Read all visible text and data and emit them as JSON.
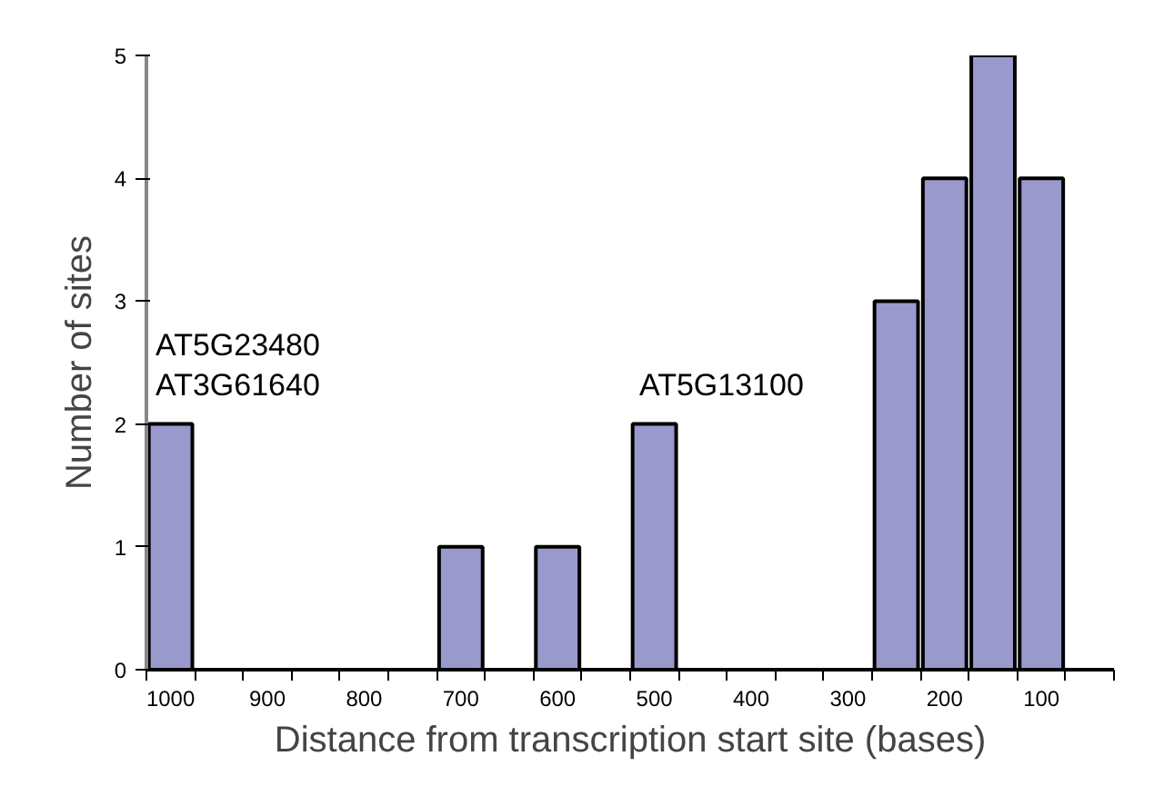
{
  "chart_data": {
    "type": "bar",
    "xlabel": "Distance from transcription start site (bases)",
    "ylabel": "Number of sites",
    "categories": [
      "1000",
      null,
      "900",
      null,
      "800",
      null,
      "700",
      null,
      "600",
      null,
      "500",
      null,
      "400",
      null,
      "300",
      null,
      "200",
      null,
      "100",
      null
    ],
    "values": [
      2,
      0,
      0,
      0,
      0,
      0,
      1,
      0,
      1,
      0,
      2,
      0,
      0,
      0,
      0,
      3,
      4,
      5,
      4,
      0
    ],
    "color": "#9999cc",
    "ylim": [
      0,
      5
    ],
    "yticks": [
      0,
      1,
      2,
      3,
      4,
      5
    ],
    "grid": false,
    "annotations": [
      {
        "text": "AT5G23480",
        "x": "1000",
        "y": 2
      },
      {
        "text": "AT3G61640",
        "x": "1000",
        "y": 2
      },
      {
        "text": "AT5G13100",
        "x": "500",
        "y": 2
      }
    ]
  }
}
